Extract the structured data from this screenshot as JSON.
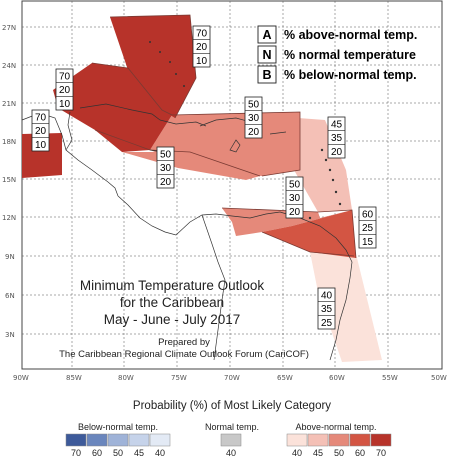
{
  "title_lines": [
    "Minimum Temperature Outlook",
    "for the Caribbean",
    "May - June - July 2017"
  ],
  "prepared_lines": [
    "Prepared by",
    "The Caribbean Regional Climate Outlook Forum (CariCOF)"
  ],
  "key": [
    {
      "letter": "A",
      "text": "% above-normal temp."
    },
    {
      "letter": "N",
      "text": "% normal temperature"
    },
    {
      "letter": "B",
      "text": "% below-normal temp."
    }
  ],
  "lon_ticks": [
    "90W",
    "85W",
    "80W",
    "75W",
    "70W",
    "65W",
    "60W",
    "55W",
    "50W"
  ],
  "lat_ticks": [
    "27N",
    "24N",
    "21N",
    "18N",
    "15N",
    "12N",
    "9N",
    "6N",
    "3N"
  ],
  "regions": [
    {
      "id": "bahamas",
      "probs": [
        "70",
        "20",
        "10"
      ],
      "category": "above",
      "level": 70,
      "color": "#b7332a"
    },
    {
      "id": "cuba",
      "probs": [
        "70",
        "20",
        "10"
      ],
      "category": "above",
      "level": 70,
      "color": "#b7332a"
    },
    {
      "id": "belize-yucatan",
      "probs": [
        "70",
        "20",
        "10"
      ],
      "category": "above",
      "level": 70,
      "color": "#b7332a"
    },
    {
      "id": "greater-antilles",
      "probs": [
        "50",
        "30",
        "20"
      ],
      "category": "above",
      "level": 50,
      "color": "#e5897a"
    },
    {
      "id": "jamaica",
      "probs": [
        "50",
        "30",
        "20"
      ],
      "category": "above",
      "level": 50,
      "color": "#e5897a"
    },
    {
      "id": "lesser-antilles",
      "probs": [
        "45",
        "35",
        "20"
      ],
      "category": "above",
      "level": 45,
      "color": "#f4c0b6"
    },
    {
      "id": "southern-caribbean",
      "probs": [
        "50",
        "30",
        "20"
      ],
      "category": "above",
      "level": 50,
      "color": "#e5897a"
    },
    {
      "id": "trinidad-guyana",
      "probs": [
        "60",
        "25",
        "15"
      ],
      "category": "above",
      "level": 60,
      "color": "#d35543"
    },
    {
      "id": "guianas",
      "probs": [
        "40",
        "35",
        "25"
      ],
      "category": "above",
      "level": 40,
      "color": "#fbe2da"
    }
  ],
  "legend": {
    "title": "Probability (%) of Most Likely Category",
    "below_label": "Below-normal temp.",
    "normal_label": "Normal temp.",
    "above_label": "Above-normal temp.",
    "below": [
      {
        "value": "70",
        "color": "#3d5a9a"
      },
      {
        "value": "60",
        "color": "#6a86bd"
      },
      {
        "value": "50",
        "color": "#9fb3d8"
      },
      {
        "value": "45",
        "color": "#c6d3ea"
      },
      {
        "value": "40",
        "color": "#e3eaf5"
      }
    ],
    "normal": [
      {
        "value": "40",
        "color": "#c8c8c8"
      }
    ],
    "above": [
      {
        "value": "40",
        "color": "#fbe2da"
      },
      {
        "value": "45",
        "color": "#f4c0b6"
      },
      {
        "value": "50",
        "color": "#e5897a"
      },
      {
        "value": "60",
        "color": "#d35543"
      },
      {
        "value": "70",
        "color": "#b7332a"
      }
    ]
  }
}
